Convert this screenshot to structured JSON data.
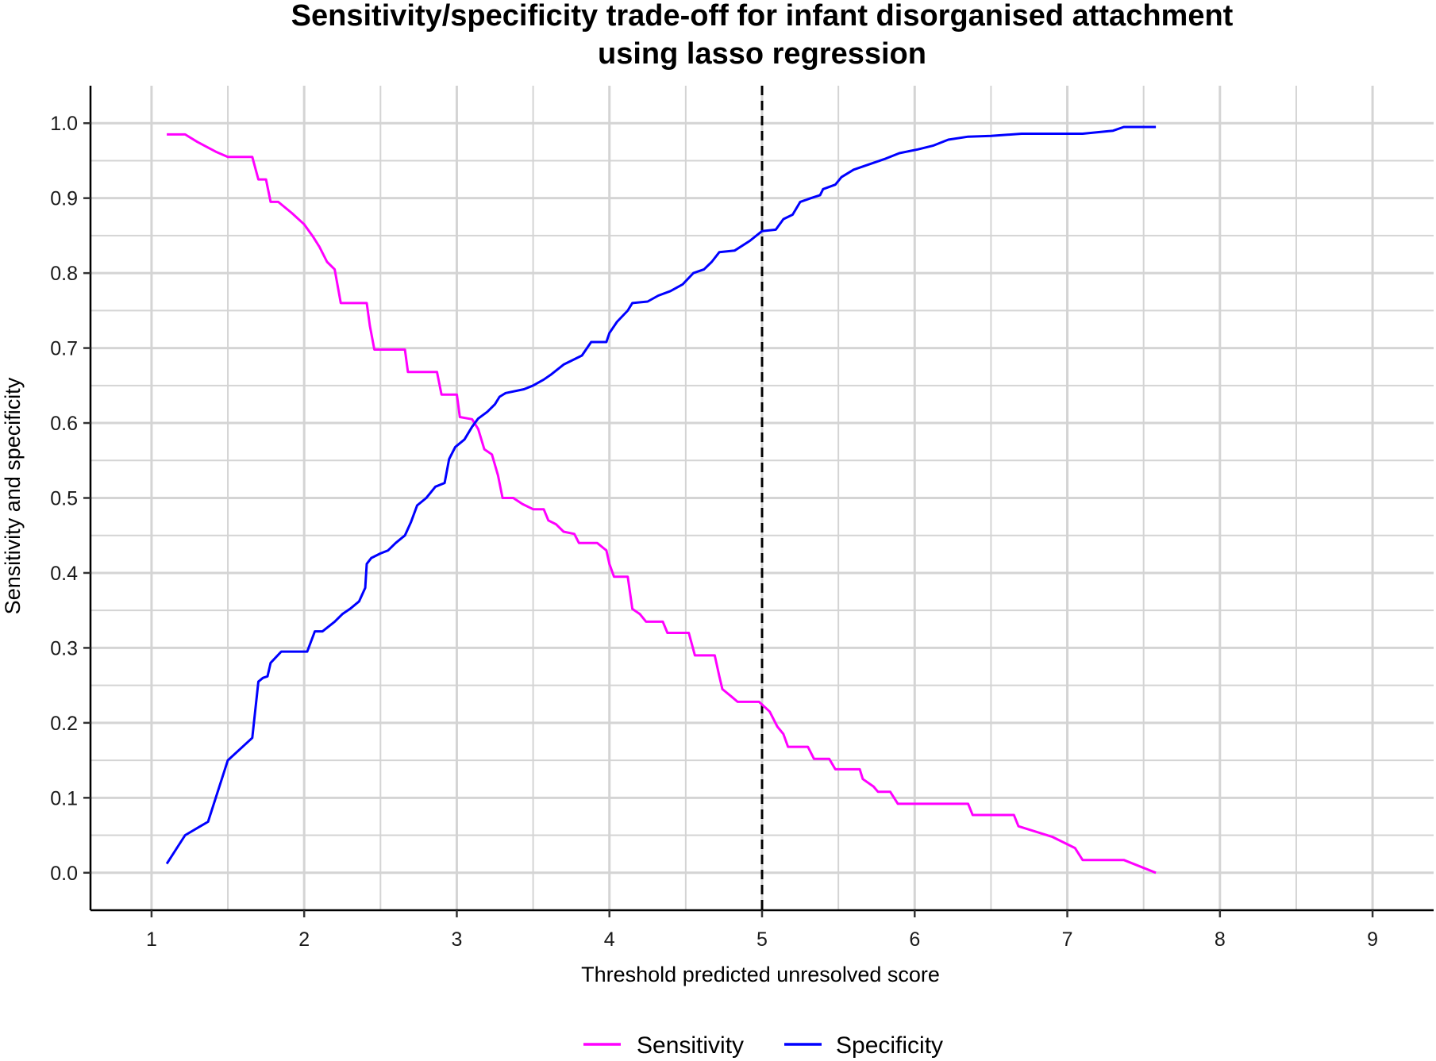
{
  "chart_data": {
    "type": "line",
    "title": "Sensitivity/specificity trade-off for infant disorganised attachment",
    "subtitle": "using lasso regression",
    "xlabel": "Threshold predicted unresolved score",
    "ylabel": "Sensitivity and specificity",
    "xlim": [
      0.6,
      9.4
    ],
    "ylim": [
      -0.05,
      1.05
    ],
    "x_ticks": [
      1,
      2,
      3,
      4,
      5,
      6,
      7,
      8,
      9
    ],
    "y_ticks": [
      0.0,
      0.1,
      0.2,
      0.3,
      0.4,
      0.5,
      0.6,
      0.7,
      0.8,
      0.9,
      1.0
    ],
    "x_tick_labels": [
      "1",
      "2",
      "3",
      "4",
      "5",
      "6",
      "7",
      "8",
      "9"
    ],
    "y_tick_labels": [
      "0.0",
      "0.1",
      "0.2",
      "0.3",
      "0.4",
      "0.5",
      "0.6",
      "0.7",
      "0.8",
      "0.9",
      "1.0"
    ],
    "grid": true,
    "legend_position": "bottom",
    "vline": {
      "x": 5.0,
      "style": "dashed",
      "color": "#000000"
    },
    "series": [
      {
        "name": "Sensitivity",
        "color": "#ff00ff",
        "points": [
          [
            1.1,
            0.985
          ],
          [
            1.22,
            0.985
          ],
          [
            1.3,
            0.975
          ],
          [
            1.42,
            0.962
          ],
          [
            1.5,
            0.955
          ],
          [
            1.66,
            0.955
          ],
          [
            1.7,
            0.925
          ],
          [
            1.75,
            0.925
          ],
          [
            1.78,
            0.895
          ],
          [
            1.83,
            0.895
          ],
          [
            1.92,
            0.88
          ],
          [
            2.0,
            0.865
          ],
          [
            2.06,
            0.848
          ],
          [
            2.1,
            0.835
          ],
          [
            2.15,
            0.815
          ],
          [
            2.2,
            0.805
          ],
          [
            2.24,
            0.76
          ],
          [
            2.41,
            0.76
          ],
          [
            2.43,
            0.73
          ],
          [
            2.46,
            0.698
          ],
          [
            2.66,
            0.698
          ],
          [
            2.68,
            0.668
          ],
          [
            2.87,
            0.668
          ],
          [
            2.9,
            0.638
          ],
          [
            3.0,
            0.638
          ],
          [
            3.02,
            0.608
          ],
          [
            3.1,
            0.605
          ],
          [
            3.14,
            0.592
          ],
          [
            3.18,
            0.565
          ],
          [
            3.23,
            0.558
          ],
          [
            3.27,
            0.53
          ],
          [
            3.3,
            0.5
          ],
          [
            3.37,
            0.5
          ],
          [
            3.43,
            0.492
          ],
          [
            3.5,
            0.485
          ],
          [
            3.57,
            0.485
          ],
          [
            3.6,
            0.47
          ],
          [
            3.65,
            0.465
          ],
          [
            3.7,
            0.455
          ],
          [
            3.77,
            0.452
          ],
          [
            3.8,
            0.44
          ],
          [
            3.92,
            0.44
          ],
          [
            3.98,
            0.43
          ],
          [
            4.0,
            0.412
          ],
          [
            4.03,
            0.395
          ],
          [
            4.12,
            0.395
          ],
          [
            4.15,
            0.352
          ],
          [
            4.2,
            0.345
          ],
          [
            4.24,
            0.335
          ],
          [
            4.35,
            0.335
          ],
          [
            4.38,
            0.32
          ],
          [
            4.52,
            0.32
          ],
          [
            4.56,
            0.29
          ],
          [
            4.69,
            0.29
          ],
          [
            4.72,
            0.262
          ],
          [
            4.74,
            0.245
          ],
          [
            4.8,
            0.235
          ],
          [
            4.84,
            0.228
          ],
          [
            4.98,
            0.228
          ],
          [
            5.05,
            0.215
          ],
          [
            5.1,
            0.195
          ],
          [
            5.14,
            0.185
          ],
          [
            5.17,
            0.168
          ],
          [
            5.3,
            0.168
          ],
          [
            5.34,
            0.152
          ],
          [
            5.44,
            0.152
          ],
          [
            5.48,
            0.138
          ],
          [
            5.64,
            0.138
          ],
          [
            5.66,
            0.125
          ],
          [
            5.73,
            0.115
          ],
          [
            5.76,
            0.108
          ],
          [
            5.84,
            0.108
          ],
          [
            5.89,
            0.092
          ],
          [
            6.35,
            0.092
          ],
          [
            6.38,
            0.077
          ],
          [
            6.65,
            0.077
          ],
          [
            6.68,
            0.062
          ],
          [
            6.9,
            0.048
          ],
          [
            7.05,
            0.033
          ],
          [
            7.1,
            0.017
          ],
          [
            7.37,
            0.017
          ],
          [
            7.58,
            0.0
          ]
        ]
      },
      {
        "name": "Specificity",
        "color": "#0000ff",
        "points": [
          [
            1.1,
            0.012
          ],
          [
            1.22,
            0.05
          ],
          [
            1.37,
            0.068
          ],
          [
            1.5,
            0.15
          ],
          [
            1.66,
            0.18
          ],
          [
            1.7,
            0.255
          ],
          [
            1.73,
            0.26
          ],
          [
            1.76,
            0.262
          ],
          [
            1.78,
            0.28
          ],
          [
            1.85,
            0.295
          ],
          [
            2.02,
            0.295
          ],
          [
            2.07,
            0.322
          ],
          [
            2.12,
            0.322
          ],
          [
            2.2,
            0.335
          ],
          [
            2.25,
            0.345
          ],
          [
            2.3,
            0.352
          ],
          [
            2.36,
            0.362
          ],
          [
            2.4,
            0.38
          ],
          [
            2.41,
            0.412
          ],
          [
            2.44,
            0.42
          ],
          [
            2.5,
            0.426
          ],
          [
            2.55,
            0.43
          ],
          [
            2.6,
            0.44
          ],
          [
            2.66,
            0.45
          ],
          [
            2.7,
            0.468
          ],
          [
            2.74,
            0.49
          ],
          [
            2.8,
            0.5
          ],
          [
            2.86,
            0.515
          ],
          [
            2.92,
            0.52
          ],
          [
            2.95,
            0.552
          ],
          [
            2.99,
            0.568
          ],
          [
            3.05,
            0.578
          ],
          [
            3.1,
            0.595
          ],
          [
            3.14,
            0.606
          ],
          [
            3.2,
            0.615
          ],
          [
            3.25,
            0.625
          ],
          [
            3.28,
            0.635
          ],
          [
            3.32,
            0.64
          ],
          [
            3.44,
            0.645
          ],
          [
            3.5,
            0.65
          ],
          [
            3.57,
            0.658
          ],
          [
            3.62,
            0.665
          ],
          [
            3.7,
            0.678
          ],
          [
            3.82,
            0.69
          ],
          [
            3.88,
            0.708
          ],
          [
            3.98,
            0.708
          ],
          [
            4.0,
            0.72
          ],
          [
            4.05,
            0.735
          ],
          [
            4.12,
            0.75
          ],
          [
            4.15,
            0.76
          ],
          [
            4.25,
            0.762
          ],
          [
            4.32,
            0.77
          ],
          [
            4.4,
            0.776
          ],
          [
            4.48,
            0.785
          ],
          [
            4.55,
            0.8
          ],
          [
            4.62,
            0.805
          ],
          [
            4.67,
            0.815
          ],
          [
            4.72,
            0.828
          ],
          [
            4.82,
            0.83
          ],
          [
            4.92,
            0.843
          ],
          [
            5.0,
            0.856
          ],
          [
            5.09,
            0.858
          ],
          [
            5.14,
            0.872
          ],
          [
            5.2,
            0.878
          ],
          [
            5.25,
            0.895
          ],
          [
            5.32,
            0.9
          ],
          [
            5.38,
            0.904
          ],
          [
            5.4,
            0.912
          ],
          [
            5.48,
            0.918
          ],
          [
            5.52,
            0.928
          ],
          [
            5.6,
            0.938
          ],
          [
            5.7,
            0.945
          ],
          [
            5.8,
            0.952
          ],
          [
            5.9,
            0.96
          ],
          [
            6.02,
            0.965
          ],
          [
            6.12,
            0.97
          ],
          [
            6.22,
            0.978
          ],
          [
            6.35,
            0.982
          ],
          [
            6.5,
            0.983
          ],
          [
            6.7,
            0.986
          ],
          [
            7.1,
            0.986
          ],
          [
            7.3,
            0.99
          ],
          [
            7.37,
            0.995
          ],
          [
            7.58,
            0.995
          ]
        ]
      }
    ]
  }
}
